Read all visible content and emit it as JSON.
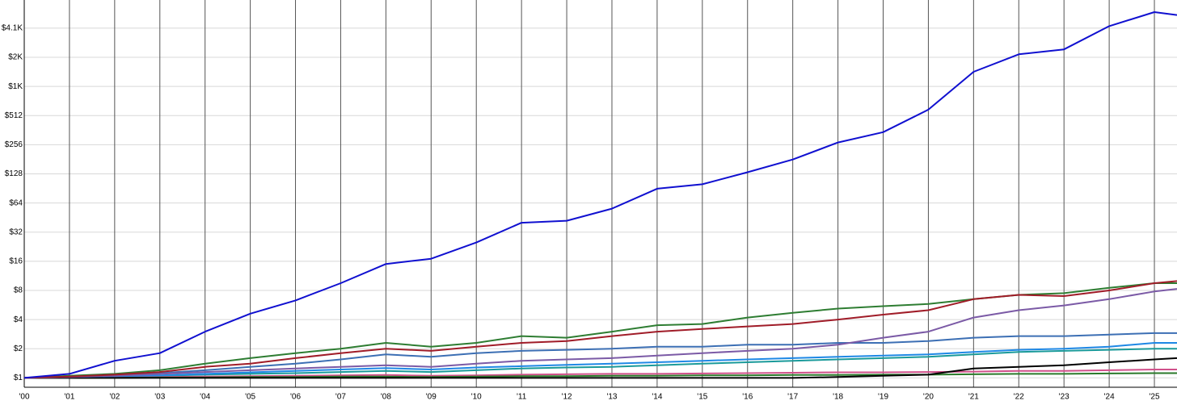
{
  "chart_data": {
    "type": "line",
    "log_scale": true,
    "grid": true,
    "x": [
      2000,
      2001,
      2002,
      2003,
      2004,
      2005,
      2006,
      2007,
      2008,
      2009,
      2010,
      2011,
      2012,
      2013,
      2014,
      2015,
      2016,
      2017,
      2018,
      2019,
      2020,
      2021,
      2022,
      2023,
      2024,
      2025,
      2025.5
    ],
    "xlim": [
      2000,
      2025.5
    ],
    "xticks": [
      {
        "value": 2000,
        "label": "'00"
      },
      {
        "value": 2001,
        "label": "'01"
      },
      {
        "value": 2002,
        "label": "'02"
      },
      {
        "value": 2003,
        "label": "'03"
      },
      {
        "value": 2004,
        "label": "'04"
      },
      {
        "value": 2005,
        "label": "'05"
      },
      {
        "value": 2006,
        "label": "'06"
      },
      {
        "value": 2007,
        "label": "'07"
      },
      {
        "value": 2008,
        "label": "'08"
      },
      {
        "value": 2009,
        "label": "'09"
      },
      {
        "value": 2010,
        "label": "'10"
      },
      {
        "value": 2011,
        "label": "'11"
      },
      {
        "value": 2012,
        "label": "'12"
      },
      {
        "value": 2013,
        "label": "'13"
      },
      {
        "value": 2014,
        "label": "'14"
      },
      {
        "value": 2015,
        "label": "'15"
      },
      {
        "value": 2016,
        "label": "'16"
      },
      {
        "value": 2017,
        "label": "'17"
      },
      {
        "value": 2018,
        "label": "'18"
      },
      {
        "value": 2019,
        "label": "'19"
      },
      {
        "value": 2020,
        "label": "'20"
      },
      {
        "value": 2021,
        "label": "'21"
      },
      {
        "value": 2022,
        "label": "'22"
      },
      {
        "value": 2023,
        "label": "'23"
      },
      {
        "value": 2024,
        "label": "'24"
      },
      {
        "value": 2025,
        "label": "'25"
      }
    ],
    "ylim": [
      0.8,
      8000
    ],
    "yticks": [
      {
        "value": 1,
        "label": "$1"
      },
      {
        "value": 2,
        "label": "$2"
      },
      {
        "value": 4,
        "label": "$4"
      },
      {
        "value": 8,
        "label": "$8"
      },
      {
        "value": 16,
        "label": "$16"
      },
      {
        "value": 32,
        "label": "$32"
      },
      {
        "value": 64,
        "label": "$64"
      },
      {
        "value": 128,
        "label": "$128"
      },
      {
        "value": 256,
        "label": "$256"
      },
      {
        "value": 512,
        "label": "$512"
      },
      {
        "value": 1024,
        "label": "$1K"
      },
      {
        "value": 2048,
        "label": "$2K"
      },
      {
        "value": 4096,
        "label": "$4.1K"
      }
    ],
    "series": [
      {
        "color": "#1a9a9a",
        "values": [
          1,
          1.01,
          1.03,
          1.05,
          1.08,
          1.1,
          1.12,
          1.15,
          1.18,
          1.15,
          1.2,
          1.25,
          1.28,
          1.3,
          1.35,
          1.4,
          1.45,
          1.5,
          1.55,
          1.6,
          1.65,
          1.75,
          1.85,
          1.9,
          1.95,
          2.0,
          2.0
        ]
      },
      {
        "color": "#d0508a",
        "values": [
          1,
          1.0,
          1.01,
          1.02,
          1.03,
          1.04,
          1.05,
          1.06,
          1.07,
          1.05,
          1.06,
          1.08,
          1.09,
          1.1,
          1.1,
          1.11,
          1.12,
          1.13,
          1.14,
          1.14,
          1.15,
          1.16,
          1.18,
          1.18,
          1.2,
          1.22,
          1.22
        ]
      },
      {
        "color": "#2a7a2a",
        "values": [
          1,
          1.0,
          1.0,
          1.01,
          1.01,
          1.02,
          1.02,
          1.03,
          1.03,
          1.02,
          1.03,
          1.04,
          1.04,
          1.05,
          1.05,
          1.06,
          1.06,
          1.07,
          1.07,
          1.08,
          1.08,
          1.09,
          1.1,
          1.1,
          1.11,
          1.12,
          1.12
        ]
      },
      {
        "color": "#000000",
        "values": [
          1,
          1.0,
          1.0,
          1.0,
          1.0,
          1.0,
          1.0,
          1.0,
          1.0,
          1.0,
          1.0,
          1.0,
          1.0,
          1.0,
          1.0,
          1.0,
          1.0,
          1.0,
          1.02,
          1.05,
          1.08,
          1.25,
          1.3,
          1.35,
          1.45,
          1.55,
          1.6
        ]
      },
      {
        "color": "#1e88e5",
        "values": [
          1,
          1.02,
          1.04,
          1.06,
          1.1,
          1.14,
          1.18,
          1.22,
          1.26,
          1.22,
          1.28,
          1.32,
          1.36,
          1.4,
          1.45,
          1.5,
          1.55,
          1.6,
          1.65,
          1.7,
          1.75,
          1.85,
          1.95,
          2.0,
          2.1,
          2.3,
          2.3
        ]
      },
      {
        "color": "#3c6fb4",
        "values": [
          1,
          1.04,
          1.08,
          1.12,
          1.2,
          1.3,
          1.4,
          1.55,
          1.75,
          1.65,
          1.8,
          1.9,
          1.95,
          2.0,
          2.1,
          2.1,
          2.2,
          2.2,
          2.3,
          2.3,
          2.4,
          2.6,
          2.7,
          2.7,
          2.8,
          2.9,
          2.9
        ]
      },
      {
        "color": "#7b5aa6",
        "values": [
          1,
          1.02,
          1.05,
          1.1,
          1.15,
          1.2,
          1.25,
          1.3,
          1.35,
          1.3,
          1.4,
          1.5,
          1.55,
          1.6,
          1.7,
          1.8,
          1.9,
          2.0,
          2.2,
          2.6,
          3.0,
          4.2,
          5.0,
          5.6,
          6.5,
          7.8,
          8.3
        ]
      },
      {
        "color": "#2e7d32",
        "values": [
          1,
          1.05,
          1.1,
          1.2,
          1.4,
          1.6,
          1.8,
          2.0,
          2.3,
          2.1,
          2.3,
          2.7,
          2.6,
          3.0,
          3.5,
          3.6,
          4.2,
          4.7,
          5.2,
          5.5,
          5.8,
          6.5,
          7.2,
          7.5,
          8.5,
          9.5,
          9.5
        ]
      },
      {
        "color": "#a01c28",
        "values": [
          1,
          1.03,
          1.08,
          1.15,
          1.3,
          1.4,
          1.6,
          1.8,
          2.0,
          1.9,
          2.1,
          2.3,
          2.4,
          2.7,
          3.0,
          3.2,
          3.4,
          3.6,
          4.0,
          4.5,
          5.0,
          6.5,
          7.2,
          7.0,
          8.0,
          9.5,
          10
        ]
      },
      {
        "color": "#1010d0",
        "values": [
          1,
          1.1,
          1.5,
          1.8,
          3,
          4.6,
          6.3,
          9.5,
          15,
          17,
          25,
          40,
          42,
          56,
          90,
          100,
          133,
          180,
          270,
          345,
          590,
          1450,
          2200,
          2470,
          4300,
          6000,
          5600
        ]
      }
    ]
  }
}
